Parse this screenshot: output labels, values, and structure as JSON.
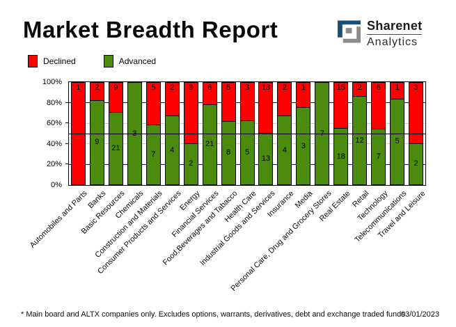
{
  "header": {
    "title": "Market Breadth Report",
    "logo": {
      "line1": "Sharenet",
      "line2": "Analytics",
      "blue": "#1d4f76",
      "gray": "#8c8c8c"
    }
  },
  "legend": [
    {
      "label": "Declined",
      "color": "#ff0000"
    },
    {
      "label": "Advanced",
      "color": "#4b8c0e"
    }
  ],
  "chart_data": {
    "type": "bar",
    "stacked": true,
    "percent": true,
    "title": "Market Breadth Report",
    "xlabel": "",
    "ylabel": "",
    "ylim": [
      0,
      100
    ],
    "ytick_labels": [
      "0%",
      "20%",
      "40%",
      "60%",
      "80%",
      "100%"
    ],
    "legend_position": "top-left",
    "gridlines": {
      "navy_at": [
        20,
        80
      ],
      "gray_at": [
        40,
        60
      ],
      "reference_line_at": 50
    },
    "colors": {
      "declined": "#ff0000",
      "advanced": "#4b8c0e",
      "navy_grid": "#000080",
      "gray_grid": "#c8c8c8",
      "reference_line": "#000000"
    },
    "categories": [
      "Automobiles and Parts",
      "Banks",
      "Basic Resources",
      "Chemicals",
      "Construction and Materials",
      "Consumer Products and Services",
      "Energy",
      "Financial Services",
      "Food,Beverages and Tabacco",
      "Health Care",
      "Industrial Goods and Services",
      "Insurance",
      "Media",
      "Personal Care, Drug and Grocery Stores",
      "Real Estate",
      "Retail",
      "Technology",
      "Telecommunications",
      "Travel and Leisure"
    ],
    "series": [
      {
        "name": "Declined",
        "color": "#ff0000",
        "values": [
          1,
          2,
          9,
          0,
          5,
          2,
          3,
          6,
          5,
          3,
          13,
          2,
          1,
          0,
          15,
          2,
          6,
          1,
          3
        ]
      },
      {
        "name": "Advanced",
        "color": "#4b8c0e",
        "values": [
          0,
          9,
          21,
          3,
          7,
          4,
          2,
          21,
          8,
          5,
          13,
          4,
          3,
          7,
          18,
          12,
          7,
          5,
          2
        ]
      }
    ]
  },
  "footer": {
    "note": "* Main board and ALTX companies only. Excludes options, warrants, derivatives, debt and exchange traded funds",
    "date": "03/01/2023"
  }
}
